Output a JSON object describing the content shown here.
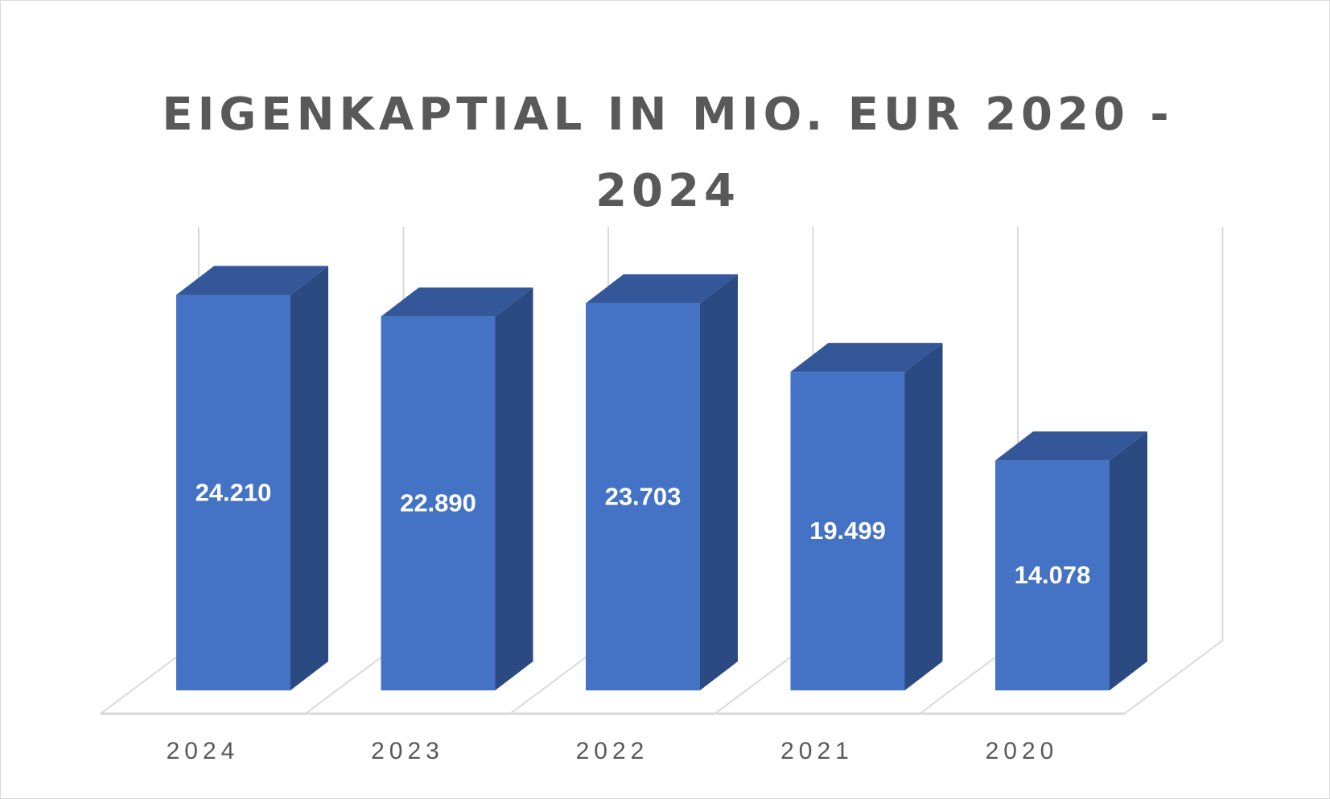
{
  "chart_data": {
    "type": "bar",
    "title": "EIGENKAPTIAL IN MIO. EUR 2020 - 2024",
    "categories": [
      "2024",
      "2023",
      "2022",
      "2021",
      "2020"
    ],
    "values": [
      24.21,
      22.89,
      23.703,
      19.499,
      14.078
    ],
    "data_labels": [
      "24.210",
      "22.890",
      "23.703",
      "19.499",
      "14.078"
    ],
    "xlabel": "",
    "ylabel": "",
    "ylim": [
      0,
      30
    ],
    "grid": true,
    "legend": "none",
    "style": "3d-column",
    "colors": {
      "front": "#4472C4",
      "side": "#2C4A82",
      "top": "#34579A",
      "grid": "#D9D9D9",
      "title": "#595959",
      "axis_text": "#595959",
      "label": "#FFFFFF"
    }
  }
}
